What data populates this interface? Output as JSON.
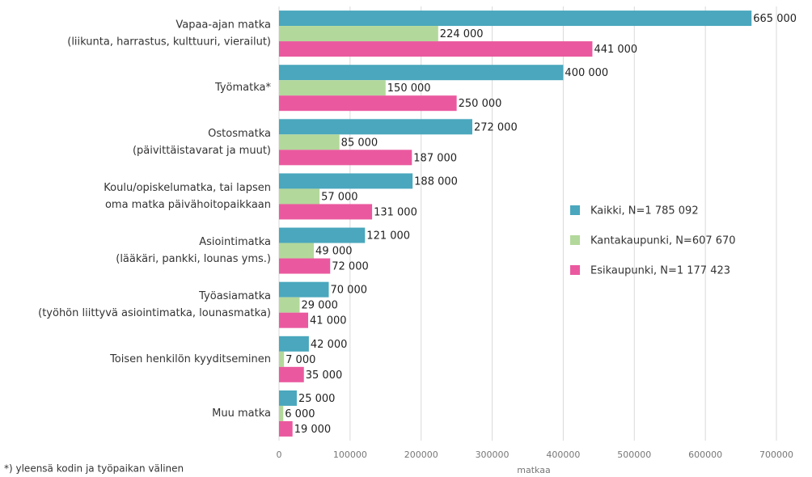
{
  "chart_data": {
    "type": "bar",
    "orientation": "horizontal",
    "categories": [
      [
        "Vapaa-ajan matka",
        "(liikunta, harrastus, kulttuuri, vierailut)"
      ],
      [
        "Työmatka*"
      ],
      [
        "Ostosmatka",
        "(päivittäistavarat ja muut)"
      ],
      [
        "Koulu/opiskelumatka, tai lapsen",
        "oma matka päivähoitopaikkaan"
      ],
      [
        "Asiointimatka",
        "(lääkäri, pankki, lounas yms.)"
      ],
      [
        "Työasiamatka",
        "(työhön liittyvä asiointimatka, lounasmatka)"
      ],
      [
        "Toisen henkilön kyyditseminen"
      ],
      [
        "Muu matka"
      ]
    ],
    "series": [
      {
        "name": "Kaikki, N=1 785 092",
        "color": "#4aa7bd",
        "values": [
          665000,
          400000,
          272000,
          188000,
          121000,
          70000,
          42000,
          25000
        ],
        "value_labels": [
          "665 000",
          "400 000",
          "272 000",
          "188 000",
          "121 000",
          "70 000",
          "42 000",
          "25 000"
        ]
      },
      {
        "name": "Kantakaupunki, N=607 670",
        "color": "#b3d89b",
        "values": [
          224000,
          150000,
          85000,
          57000,
          49000,
          29000,
          7000,
          6000
        ],
        "value_labels": [
          "224 000",
          "150 000",
          "85 000",
          "57 000",
          "49 000",
          "29 000",
          "7 000",
          "6 000"
        ]
      },
      {
        "name": "Esikaupunki, N=1 177 423",
        "color": "#ea599f",
        "values": [
          441000,
          250000,
          187000,
          131000,
          72000,
          41000,
          35000,
          19000
        ],
        "value_labels": [
          "441 000",
          "250 000",
          "187 000",
          "131 000",
          "72 000",
          "41 000",
          "35 000",
          "19 000"
        ]
      }
    ],
    "xlim": [
      0,
      700000
    ],
    "xticks": [
      0,
      100000,
      200000,
      300000,
      400000,
      500000,
      600000,
      700000
    ],
    "xlabel": "matkaa",
    "footnote": "*) yleensä kodin ja työpaikan välinen",
    "grid": true,
    "legend": "right"
  }
}
